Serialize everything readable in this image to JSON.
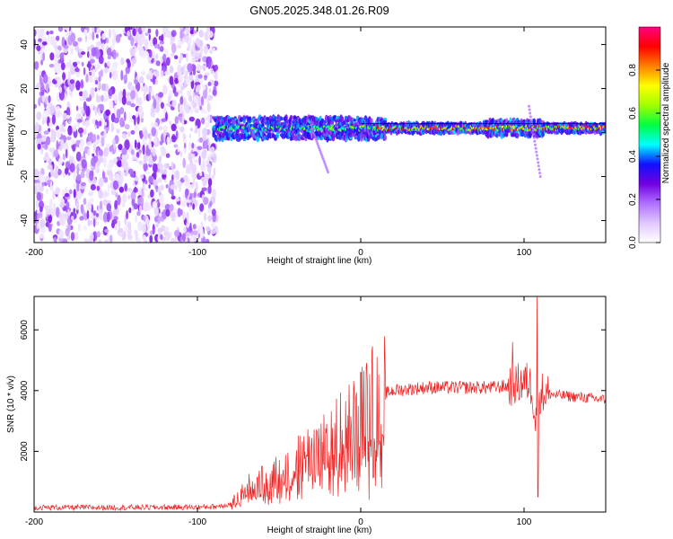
{
  "title": "GN05.2025.348.01.26.R09",
  "chart_data": [
    {
      "type": "heatmap",
      "xlabel": "Height of straight line (km)",
      "ylabel": "Frequency (Hz)",
      "xlim": [
        -200,
        150
      ],
      "ylim": [
        -50,
        48
      ],
      "xticks": [
        -200,
        -100,
        0,
        100
      ],
      "yticks": [
        -40,
        -20,
        0,
        20,
        40
      ],
      "colorbar": {
        "label": "Normalized spectral amplitude",
        "range": [
          0,
          1
        ],
        "ticks": [
          0.0,
          0.2,
          0.4,
          0.6,
          0.8
        ],
        "tick_labels": [
          "0.0",
          "0.2",
          "0.4",
          "0.6",
          "0.8"
        ],
        "stops": [
          "#ffffff",
          "#e0c8ff",
          "#b070ff",
          "#7000e0",
          "#1010ff",
          "#00ffff",
          "#00ff40",
          "#a0ff00",
          "#ffff00",
          "#ff8000",
          "#ff0000",
          "#ff0080"
        ]
      },
      "regions": [
        {
          "name": "noise",
          "x_range": [
            -200,
            -88
          ],
          "freq_range": [
            -50,
            48
          ],
          "amplitude": [
            0.05,
            0.25
          ]
        },
        {
          "name": "signal-band",
          "x_range": [
            -90,
            150
          ],
          "freq_center": 2,
          "freq_halfwidth": 4,
          "amplitude": [
            0.3,
            1.0
          ]
        }
      ]
    },
    {
      "type": "line",
      "xlabel": "Height of straight line (km)",
      "ylabel": "SNR (10 * v/v)",
      "xlim": [
        -200,
        150
      ],
      "ylim": [
        0,
        7100
      ],
      "xticks": [
        -200,
        -100,
        0,
        100
      ],
      "yticks": [
        2000,
        4000,
        6000
      ],
      "color": "#ee2222",
      "x": [
        -200,
        -150,
        -100,
        -90,
        -80,
        -75,
        -70,
        -60,
        -50,
        -40,
        -30,
        -20,
        -10,
        0,
        5,
        10,
        15,
        20,
        30,
        40,
        50,
        60,
        70,
        80,
        90,
        95,
        100,
        103,
        105,
        107,
        108,
        110,
        115,
        120,
        130,
        140,
        150
      ],
      "values": [
        150,
        150,
        160,
        180,
        250,
        500,
        800,
        1000,
        1300,
        1600,
        2000,
        2300,
        2700,
        3100,
        3500,
        3700,
        3900,
        4000,
        4050,
        4100,
        4100,
        4100,
        4100,
        4100,
        4150,
        4200,
        4300,
        4250,
        4100,
        3000,
        3600,
        3950,
        3900,
        3850,
        3800,
        3750,
        3700
      ],
      "spikes": [
        {
          "x": 0,
          "value": 4600
        },
        {
          "x": 5,
          "value": 400
        },
        {
          "x": 93,
          "value": 5600
        },
        {
          "x": 108,
          "value": 7100
        },
        {
          "x": 108.5,
          "value": 500
        }
      ]
    }
  ]
}
